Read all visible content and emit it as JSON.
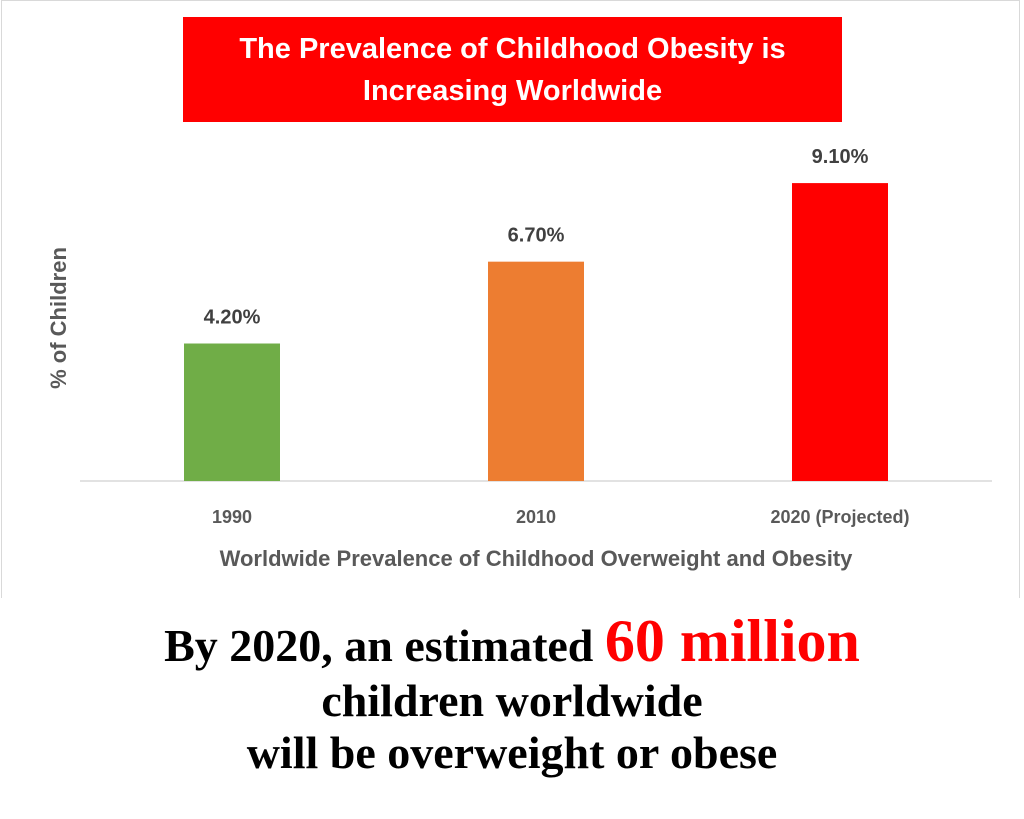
{
  "chart_data": {
    "type": "bar",
    "title": "The Prevalence of Childhood Obesity is Increasing Worldwide",
    "title_lines": [
      "The Prevalence of Childhood Obesity is",
      "Increasing Worldwide"
    ],
    "xlabel": "Worldwide Prevalence of Childhood Overweight and Obesity",
    "ylabel": "% of Children",
    "categories": [
      "1990",
      "2010",
      "2020 (Projected)"
    ],
    "values": [
      4.2,
      6.7,
      9.1
    ],
    "data_labels": [
      "4.20%",
      "6.70%",
      "9.10%"
    ],
    "bar_colors": [
      "#70ad47",
      "#ed7d31",
      "#ff0000"
    ],
    "ylim": [
      0,
      9.5
    ],
    "grid": false,
    "legend": "none"
  },
  "caption": {
    "line1_prefix": "By 2020, an estimated ",
    "line1_highlight": "60 million",
    "line2": "children worldwide",
    "line3": "will be overweight or obese",
    "highlight_color": "#ff0000"
  }
}
